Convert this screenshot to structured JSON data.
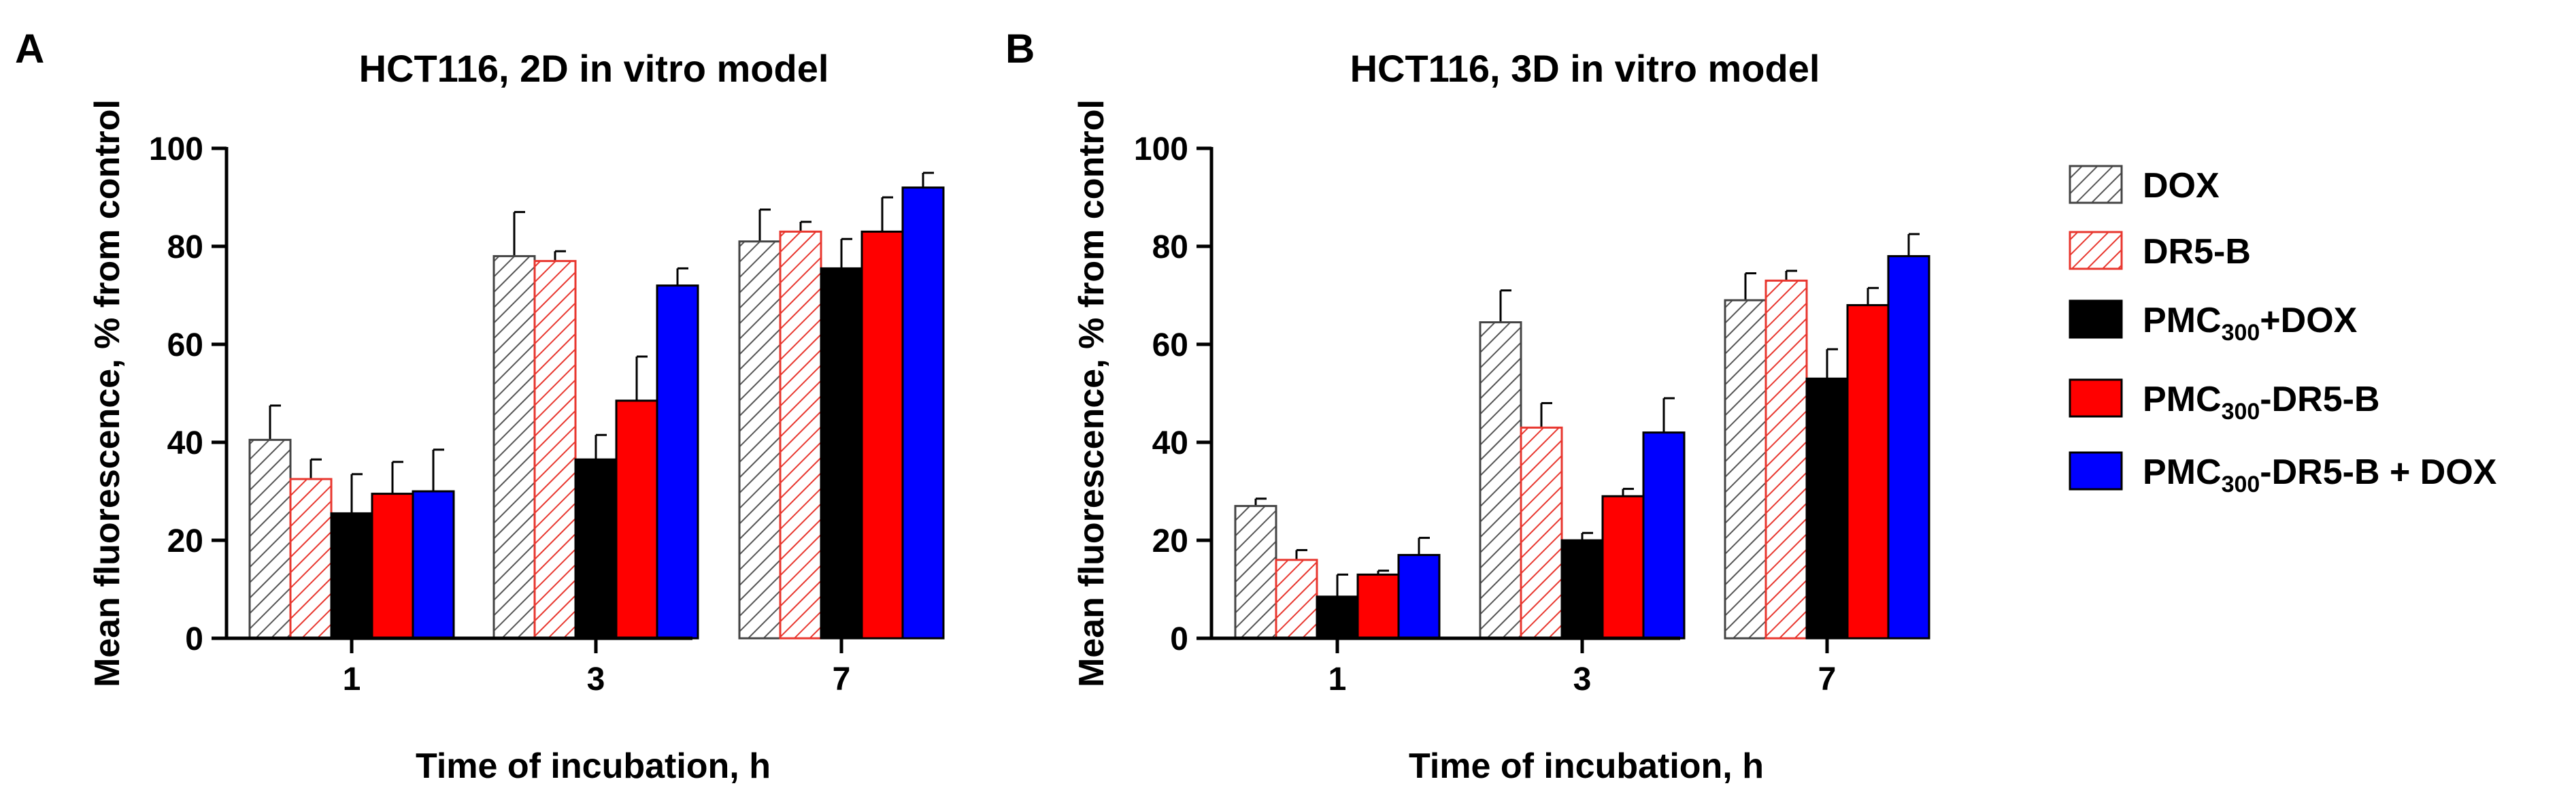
{
  "panels": [
    {
      "letter": "A"
    },
    {
      "letter": "B"
    }
  ],
  "legend": {
    "items": [
      {
        "pre": "DOX",
        "sub": "",
        "post": ""
      },
      {
        "pre": "DR5-B",
        "sub": "",
        "post": ""
      },
      {
        "pre": "PMC",
        "sub": "300",
        "post": "+DOX"
      },
      {
        "pre": "PMC",
        "sub": "300",
        "post": "-DR5-B"
      },
      {
        "pre": "PMC",
        "sub": "300",
        "post": "-DR5-B + DOX"
      }
    ]
  },
  "colors": {
    "dox": "#555555",
    "dr5b": "#e8372f",
    "pmc_dox": "#000000",
    "pmc_dr5b": "#ff0000",
    "pmc_dr5b_dox": "#0000ff"
  },
  "chart_data": [
    {
      "type": "bar",
      "title": "HCT116, 2D in vitro model",
      "xlabel": "Time of incubation, h",
      "ylabel": "Mean fluorescence, % from control",
      "ylim": [
        0,
        100
      ],
      "yticks": [
        0,
        20,
        40,
        60,
        80,
        100
      ],
      "categories": [
        "1",
        "3",
        "7"
      ],
      "series": [
        {
          "name": "DOX",
          "style": "hatch-gray",
          "values": [
            40.5,
            78,
            81
          ],
          "errors": [
            7,
            9,
            6.5
          ]
        },
        {
          "name": "DR5-B",
          "style": "hatch-red",
          "values": [
            32.5,
            77,
            83
          ],
          "errors": [
            4,
            2,
            2
          ]
        },
        {
          "name": "PMC300+DOX",
          "style": "solid-black",
          "values": [
            25.5,
            36.5,
            75.5
          ],
          "errors": [
            8,
            5,
            6
          ]
        },
        {
          "name": "PMC300-DR5-B",
          "style": "solid-red",
          "values": [
            29.5,
            48.5,
            83
          ],
          "errors": [
            6.5,
            9,
            7
          ]
        },
        {
          "name": "PMC300-DR5-B + DOX",
          "style": "solid-blue",
          "values": [
            30,
            72,
            92
          ],
          "errors": [
            8.5,
            3.5,
            3
          ]
        }
      ]
    },
    {
      "type": "bar",
      "title": "HCT116, 3D in vitro model",
      "xlabel": "Time of incubation, h",
      "ylabel": "Mean fluorescence, % from control",
      "ylim": [
        0,
        100
      ],
      "yticks": [
        0,
        20,
        40,
        60,
        80,
        100
      ],
      "categories": [
        "1",
        "3",
        "7"
      ],
      "series": [
        {
          "name": "DOX",
          "style": "hatch-gray",
          "values": [
            27,
            64.5,
            69
          ],
          "errors": [
            1.5,
            6.5,
            5.5
          ]
        },
        {
          "name": "DR5-B",
          "style": "hatch-red",
          "values": [
            16,
            43,
            73
          ],
          "errors": [
            2,
            5,
            2
          ]
        },
        {
          "name": "PMC300+DOX",
          "style": "solid-black",
          "values": [
            8.5,
            20,
            53
          ],
          "errors": [
            4.5,
            1.5,
            6
          ]
        },
        {
          "name": "PMC300-DR5-B",
          "style": "solid-red",
          "values": [
            13,
            29,
            68
          ],
          "errors": [
            0.8,
            1.5,
            3.5
          ]
        },
        {
          "name": "PMC300-DR5-B + DOX",
          "style": "solid-blue",
          "values": [
            17,
            42,
            78
          ],
          "errors": [
            3.5,
            7,
            4.5
          ]
        }
      ]
    }
  ]
}
